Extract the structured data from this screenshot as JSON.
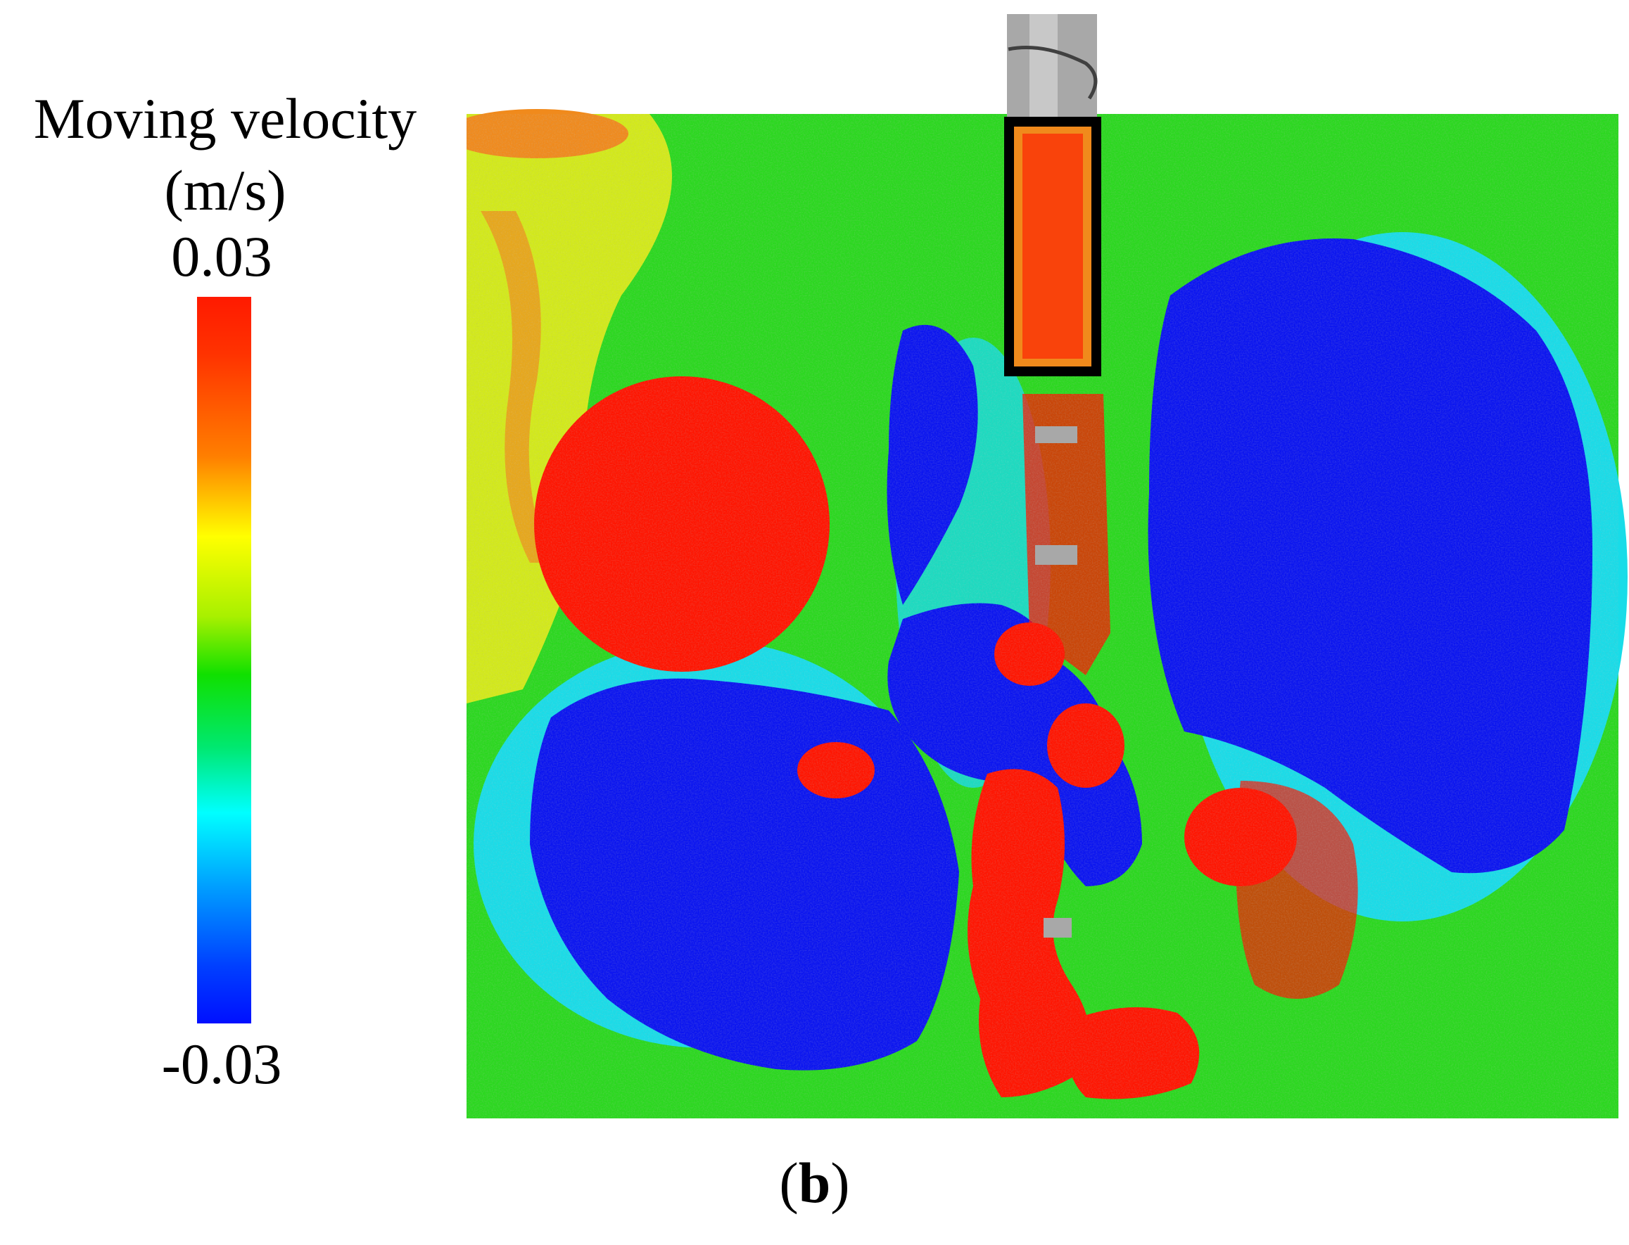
{
  "legend": {
    "title_line1": "Moving velocity",
    "title_line2": "(m/s)",
    "max_label": "0.03",
    "min_label": "-0.03",
    "colors": [
      "#ff1a00",
      "#ff7f00",
      "#ffff00",
      "#10e000",
      "#00ffff",
      "#0040ff",
      "#0010ff"
    ]
  },
  "panel_label": {
    "open": "(",
    "letter": "b",
    "close": ")"
  },
  "figure_colors": {
    "red": "#ff1400",
    "blue": "#0a14f0",
    "green": "#2ad81e",
    "yellow": "#e6ec18",
    "orange": "#f08a1c",
    "cyan": "#18dce8",
    "gray": "#a8a8a8",
    "frame": "#000000"
  }
}
